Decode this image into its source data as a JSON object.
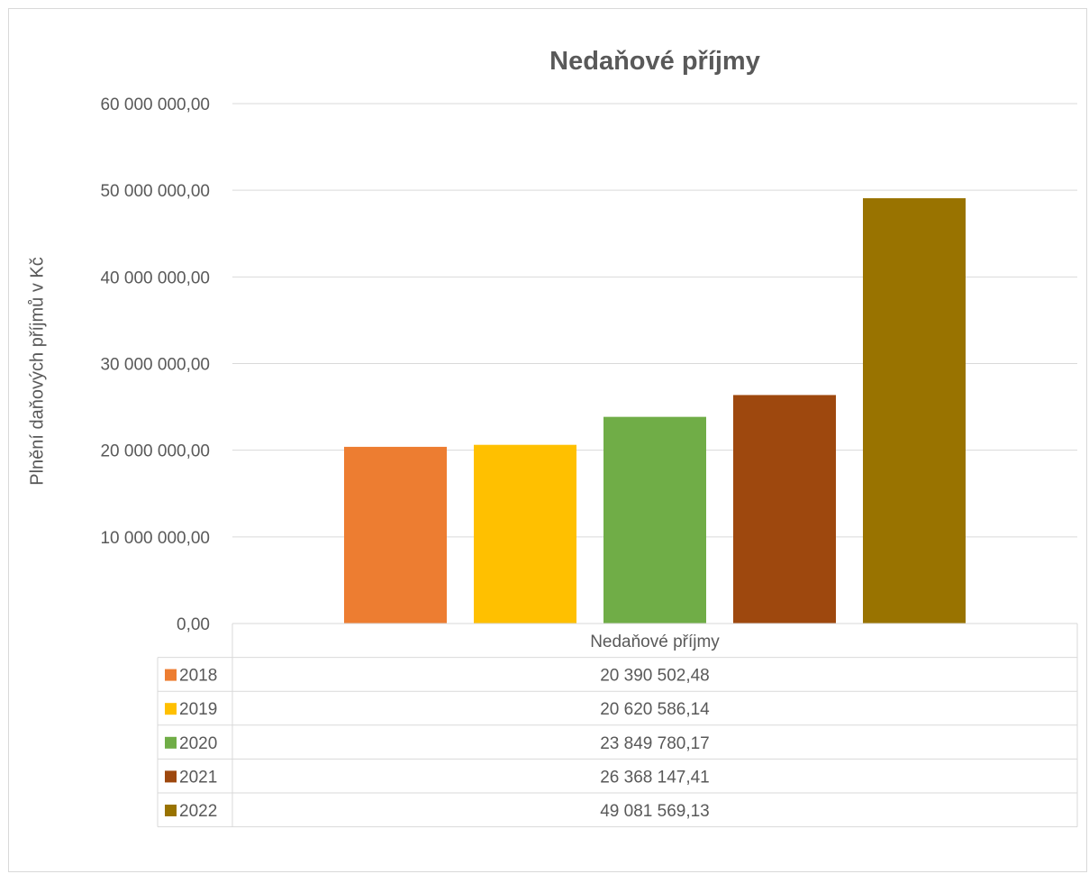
{
  "chart_data": {
    "type": "bar",
    "title": "Nedaňové příjmy",
    "xlabel": "",
    "ylabel": "Plnění daňových příjmů v Kč",
    "categories": [
      "Nedaňové příjmy"
    ],
    "series": [
      {
        "name": "2018",
        "values": [
          20390502.48
        ],
        "label": "20 390 502,48",
        "color": "#ED7D31"
      },
      {
        "name": "2019",
        "values": [
          20620586.14
        ],
        "label": "20 620 586,14",
        "color": "#FFC000"
      },
      {
        "name": "2020",
        "values": [
          23849780.17
        ],
        "label": "23 849 780,17",
        "color": "#70AD47"
      },
      {
        "name": "2021",
        "values": [
          26368147.41
        ],
        "label": "26 368 147,41",
        "color": "#9E480E"
      },
      {
        "name": "2022",
        "values": [
          49081569.13
        ],
        "label": "49 081 569,13",
        "color": "#997300"
      }
    ],
    "ylim": [
      0,
      60000000
    ],
    "yticks": [
      {
        "value": 0,
        "label": "0,00"
      },
      {
        "value": 10000000,
        "label": "10 000 000,00"
      },
      {
        "value": 20000000,
        "label": "20 000 000,00"
      },
      {
        "value": 30000000,
        "label": "30 000 000,00"
      },
      {
        "value": 40000000,
        "label": "40 000 000,00"
      },
      {
        "value": 50000000,
        "label": "50 000 000,00"
      },
      {
        "value": 60000000,
        "label": "60 000 000,00"
      }
    ],
    "grid": true,
    "legend": "data-table"
  }
}
